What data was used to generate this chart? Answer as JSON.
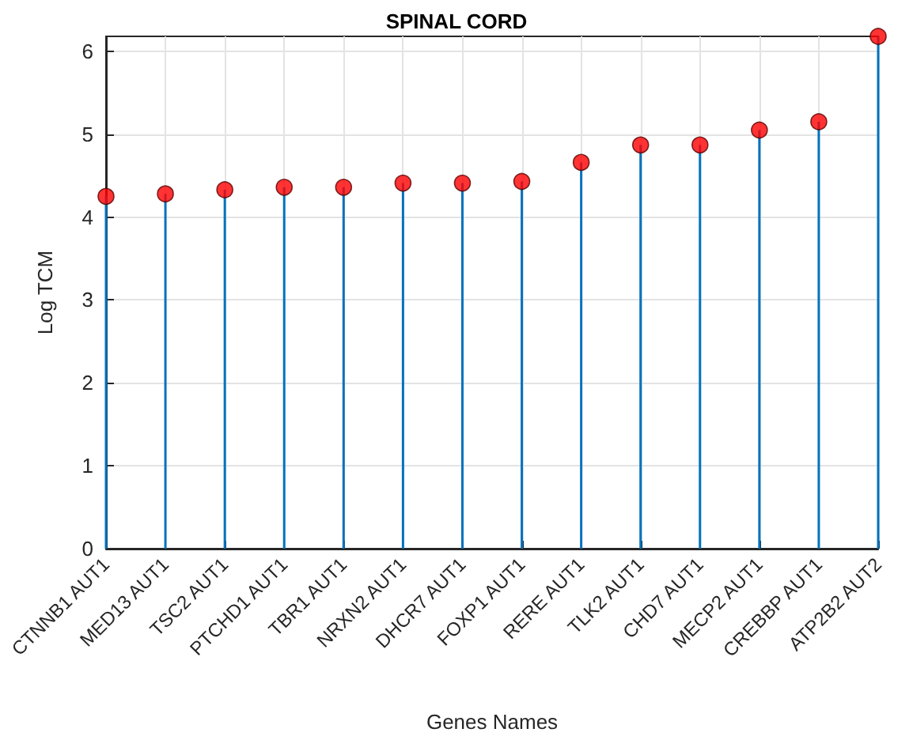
{
  "chart_data": {
    "type": "lollipop",
    "title": "SPINAL CORD",
    "xlabel": "Genes Names",
    "ylabel": "Log TCM",
    "categories": [
      "CTNNB1 AUT1",
      "MED13 AUT1",
      "TSC2 AUT1",
      "PTCHD1 AUT1",
      "TBR1 AUT1",
      "NRXN2 AUT1",
      "DHCR7 AUT1",
      "FOXP1 AUT1",
      "RERE AUT1",
      "TLK2 AUT1",
      "CHD7 AUT1",
      "MECP2 AUT1",
      "CREBBP AUT1",
      "ATP2B2 AUT2"
    ],
    "series": [
      {
        "color": "#ff0000",
        "values": [
          4.25,
          4.28,
          4.33,
          4.36,
          4.36,
          4.41,
          4.41,
          4.43,
          4.66,
          4.87,
          4.87,
          5.05,
          5.15,
          6.18
        ]
      }
    ],
    "ylim": [
      0,
      6.18
    ],
    "yticks": [
      0,
      1,
      2,
      3,
      4,
      5,
      6
    ],
    "grid": true,
    "marker": "circle"
  }
}
